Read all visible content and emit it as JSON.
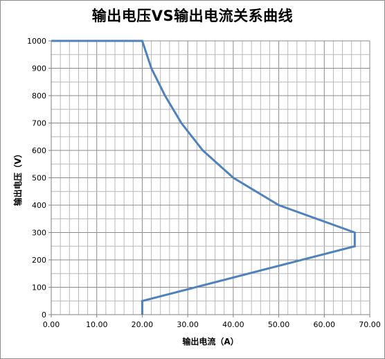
{
  "chart_data": {
    "type": "line",
    "title": "输出电压VS输出电流关系曲线",
    "xlabel": "输出电流（A）",
    "ylabel": "输出电压（V）",
    "xlim": [
      0,
      70
    ],
    "ylim": [
      0,
      1000
    ],
    "x_major_ticks": [
      "0.00",
      "10.00",
      "20.00",
      "30.00",
      "40.00",
      "50.00",
      "60.00",
      "70.00"
    ],
    "y_major_ticks": [
      "0",
      "100",
      "200",
      "300",
      "400",
      "500",
      "600",
      "700",
      "800",
      "900",
      "1000"
    ],
    "grid": true,
    "series_color": "#4f81bd",
    "series": [
      {
        "x": [
          0,
          20,
          22,
          25,
          28.6,
          33.3,
          40,
          50,
          66.7,
          66.7,
          20,
          20
        ],
        "y": [
          1000,
          1000,
          900,
          800,
          700,
          600,
          500,
          400,
          300,
          250,
          50,
          0
        ]
      }
    ]
  }
}
